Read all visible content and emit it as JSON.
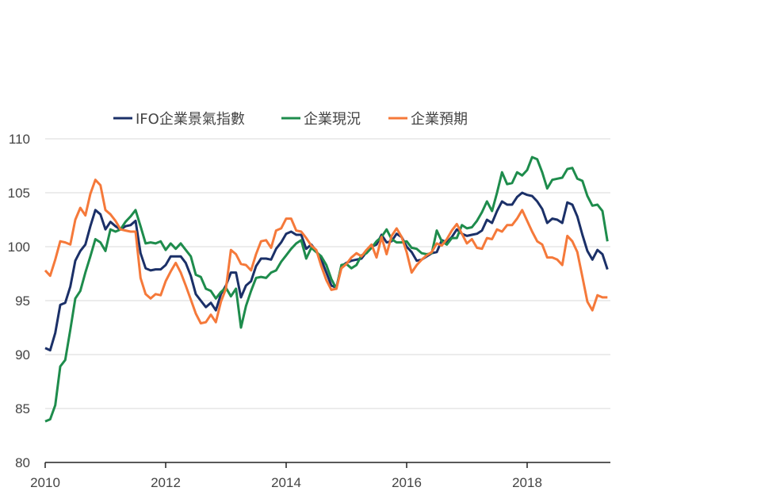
{
  "chart_data": {
    "type": "line",
    "title": "",
    "xlabel": "",
    "ylabel": "",
    "x_start": "2010-01",
    "frequency": "monthly",
    "x_ticks": [
      "2010",
      "2012",
      "2014",
      "2016",
      "2018"
    ],
    "y_ticks": [
      "80",
      "85",
      "90",
      "95",
      "100",
      "105",
      "110"
    ],
    "ylim": [
      80,
      110
    ],
    "grid": true,
    "legend_position": "top",
    "series": [
      {
        "name": "IFO企業景氣指數",
        "color": "#1b3068",
        "values": [
          90.6,
          90.4,
          92.0,
          94.6,
          94.8,
          96.3,
          98.7,
          99.6,
          100.2,
          101.9,
          103.4,
          103.0,
          101.6,
          102.3,
          101.9,
          101.6,
          101.9,
          102.0,
          102.4,
          99.4,
          98.0,
          97.8,
          97.9,
          97.9,
          98.3,
          99.1,
          99.1,
          99.1,
          98.5,
          97.3,
          95.6,
          95.0,
          94.4,
          94.8,
          94.1,
          95.6,
          96.4,
          97.6,
          97.6,
          95.3,
          96.4,
          96.8,
          98.2,
          98.9,
          98.9,
          98.8,
          99.8,
          100.4,
          101.2,
          101.4,
          101.1,
          101.1,
          99.8,
          100.2,
          99.6,
          98.8,
          97.6,
          96.4,
          96.2,
          98.2,
          98.5,
          98.7,
          98.8,
          98.9,
          99.5,
          100.0,
          100.2,
          101.1,
          100.4,
          100.5,
          101.2,
          100.9,
          100.0,
          99.5,
          98.7,
          98.8,
          99.1,
          99.4,
          99.5,
          100.6,
          100.4,
          100.9,
          101.6,
          101.2,
          101.0,
          101.1,
          101.2,
          101.5,
          102.5,
          102.2,
          103.3,
          104.2,
          103.9,
          103.9,
          104.6,
          105.0,
          104.8,
          104.7,
          104.2,
          103.5,
          102.2,
          102.6,
          102.5,
          102.2,
          104.1,
          103.9,
          102.8,
          101.1,
          99.6,
          98.8,
          99.7,
          99.3,
          97.9
        ]
      },
      {
        "name": "企業現況",
        "color": "#1e8c4c",
        "values": [
          83.8,
          84.0,
          85.3,
          88.9,
          89.5,
          92.3,
          95.2,
          95.9,
          97.6,
          99.1,
          100.7,
          100.4,
          99.6,
          101.6,
          101.4,
          101.6,
          102.3,
          102.8,
          103.4,
          101.9,
          100.3,
          100.4,
          100.3,
          100.5,
          99.7,
          100.3,
          99.8,
          100.3,
          99.7,
          99.1,
          97.4,
          97.2,
          96.1,
          95.9,
          95.2,
          95.8,
          96.2,
          95.4,
          96.1,
          92.5,
          94.5,
          95.9,
          97.1,
          97.2,
          97.1,
          97.6,
          97.8,
          98.6,
          99.2,
          99.8,
          100.3,
          100.6,
          98.9,
          99.9,
          99.5,
          99.1,
          98.3,
          97.0,
          96.1,
          98.3,
          98.4,
          98.0,
          98.3,
          99.2,
          99.4,
          99.9,
          100.5,
          100.9,
          101.6,
          100.7,
          100.4,
          100.4,
          100.5,
          99.9,
          99.8,
          99.4,
          99.3,
          99.4,
          101.5,
          100.5,
          100.2,
          100.8,
          100.8,
          102.0,
          101.7,
          101.8,
          102.4,
          103.2,
          104.2,
          103.3,
          105.0,
          106.9,
          105.8,
          105.9,
          106.9,
          106.6,
          107.1,
          108.3,
          108.1,
          106.9,
          105.4,
          106.2,
          106.3,
          106.4,
          107.2,
          107.3,
          106.3,
          106.1,
          104.7,
          103.8,
          103.9,
          103.3,
          100.5
        ]
      },
      {
        "name": "企業預期",
        "color": "#f5793a",
        "values": [
          97.8,
          97.3,
          98.8,
          100.5,
          100.4,
          100.2,
          102.5,
          103.6,
          102.9,
          104.9,
          106.2,
          105.7,
          103.4,
          103.0,
          102.4,
          101.6,
          101.5,
          101.4,
          101.4,
          97.1,
          95.6,
          95.2,
          95.6,
          95.5,
          96.8,
          97.7,
          98.5,
          97.6,
          96.4,
          95.1,
          93.8,
          92.9,
          93.0,
          93.7,
          93.0,
          94.9,
          96.1,
          99.7,
          99.3,
          98.4,
          98.3,
          97.8,
          99.3,
          100.5,
          100.6,
          99.9,
          101.5,
          101.7,
          102.6,
          102.6,
          101.5,
          101.4,
          100.8,
          100.1,
          99.7,
          98.2,
          96.9,
          96.0,
          96.1,
          98.0,
          98.4,
          99.0,
          99.4,
          99.1,
          99.7,
          100.2,
          99.0,
          100.9,
          99.3,
          101.0,
          101.7,
          100.9,
          99.5,
          97.6,
          98.3,
          98.8,
          99.2,
          99.5,
          100.3,
          100.1,
          100.7,
          101.5,
          102.1,
          101.2,
          100.3,
          100.7,
          99.9,
          99.8,
          100.8,
          100.7,
          101.6,
          101.4,
          102.0,
          102.0,
          102.6,
          103.4,
          102.4,
          101.4,
          100.5,
          100.2,
          99.0,
          99.0,
          98.8,
          98.3,
          101.0,
          100.5,
          99.5,
          97.2,
          94.9,
          94.1,
          95.5,
          95.3,
          95.3
        ]
      }
    ]
  }
}
